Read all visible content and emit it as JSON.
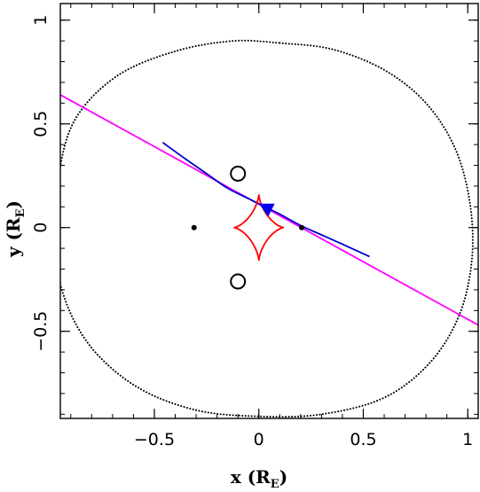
{
  "chart_data": {
    "type": "scatter",
    "title": "",
    "xlabel": {
      "main": "x (R",
      "sub": "E",
      "close": ")"
    },
    "ylabel": {
      "main": "y (R",
      "sub": "E",
      "close": ")"
    },
    "xlim": [
      -0.95,
      1.05
    ],
    "ylim": [
      -0.92,
      1.08
    ],
    "x_ticks": [
      {
        "v": -0.5,
        "label": "−0.5"
      },
      {
        "v": 0,
        "label": "0"
      },
      {
        "v": 0.5,
        "label": "0.5"
      },
      {
        "v": 1,
        "label": "1"
      }
    ],
    "y_ticks": [
      {
        "v": -0.5,
        "label": "−0.5"
      },
      {
        "v": 0,
        "label": "0"
      },
      {
        "v": 0.5,
        "label": "0.5"
      },
      {
        "v": 1,
        "label": "1"
      }
    ],
    "x_minor_step": 0.1,
    "y_minor_step": 0.1,
    "grid": false,
    "series": [
      {
        "role": "dotted-contour",
        "color": "#000000",
        "style": "dotted",
        "points": [
          [
            0.1,
            0.89
          ],
          [
            0.35,
            0.86
          ],
          [
            0.6,
            0.76
          ],
          [
            0.8,
            0.6
          ],
          [
            0.94,
            0.38
          ],
          [
            1.01,
            0.12
          ],
          [
            1.02,
            -0.15
          ],
          [
            0.96,
            -0.42
          ],
          [
            0.82,
            -0.65
          ],
          [
            0.6,
            -0.82
          ],
          [
            0.3,
            -0.9
          ],
          [
            0.0,
            -0.91
          ],
          [
            -0.3,
            -0.88
          ],
          [
            -0.58,
            -0.77
          ],
          [
            -0.8,
            -0.58
          ],
          [
            -0.93,
            -0.34
          ],
          [
            -0.98,
            -0.06
          ],
          [
            -0.96,
            0.24
          ],
          [
            -0.88,
            0.52
          ],
          [
            -0.68,
            0.73
          ],
          [
            -0.4,
            0.85
          ],
          [
            -0.12,
            0.9
          ],
          [
            0.1,
            0.89
          ]
        ]
      },
      {
        "role": "straight-line",
        "color": "#ff00ff",
        "style": "solid",
        "points": [
          [
            -0.95,
            0.64
          ],
          [
            1.05,
            -0.47
          ]
        ]
      },
      {
        "role": "curved-trajectory",
        "color": "#0000cc",
        "style": "solid",
        "points": [
          [
            -0.46,
            0.41
          ],
          [
            -0.35,
            0.33
          ],
          [
            -0.25,
            0.26
          ],
          [
            -0.15,
            0.19
          ],
          [
            -0.05,
            0.14
          ],
          [
            0.0,
            0.115
          ],
          [
            0.1,
            0.065
          ],
          [
            0.2,
            0.01
          ],
          [
            0.3,
            -0.035
          ],
          [
            0.4,
            -0.08
          ],
          [
            0.53,
            -0.14
          ]
        ]
      },
      {
        "role": "caustic",
        "color": "#ff0000",
        "style": "solid",
        "astroid": {
          "cx": 0.0,
          "cy": 0.0,
          "rx": 0.12,
          "ry": 0.16
        }
      }
    ],
    "markers": [
      {
        "role": "dot",
        "x": -0.31,
        "y": 0.0,
        "color": "#000000"
      },
      {
        "role": "dot",
        "x": 0.205,
        "y": 0.0,
        "color": "#000000"
      },
      {
        "role": "open-circle",
        "x": -0.1,
        "y": 0.26,
        "color": "#000000"
      },
      {
        "role": "open-circle",
        "x": -0.1,
        "y": -0.26,
        "color": "#000000"
      },
      {
        "role": "arrow-head",
        "x": 0.0,
        "y": 0.115,
        "dx": -0.1,
        "dy": 0.05,
        "color": "#0000ee"
      }
    ]
  }
}
